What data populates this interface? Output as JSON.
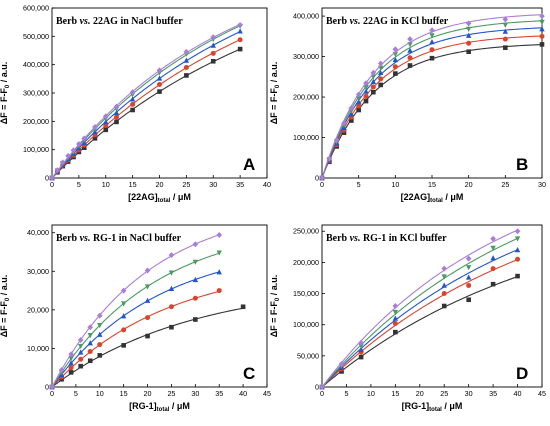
{
  "chart_data": [
    {
      "type": "scatter",
      "panel": "A",
      "title": {
        "prefix": "Berb ",
        "vs": "vs.",
        "rest": " 22AG in NaCl buffer"
      },
      "xlabel": {
        "main": "[22AG]",
        "sub": "total",
        "unit": " / μM"
      },
      "ylabel": {
        "part1": "ΔF = F-F",
        "sub": "0",
        "unit": " / a.u."
      },
      "xlim": [
        0,
        40
      ],
      "ylim": [
        0,
        600000
      ],
      "xticks": [
        "0",
        "5",
        "10",
        "15",
        "20",
        "25",
        "30",
        "35",
        "40"
      ],
      "yticks": [
        "0",
        "100,000",
        "200,000",
        "300,000",
        "400,000",
        "500,000",
        "600,000"
      ],
      "grid": false,
      "series": [
        {
          "color": "#333333",
          "marker": "square",
          "x": [
            0,
            1,
            2,
            3,
            4,
            5,
            6,
            8,
            10,
            12,
            15,
            20,
            25,
            30,
            35
          ],
          "y": [
            0,
            20000,
            42000,
            58000,
            74000,
            92000,
            107000,
            140000,
            170000,
            198000,
            240000,
            305000,
            362000,
            412000,
            455000
          ]
        },
        {
          "color": "#d9442e",
          "marker": "circle",
          "x": [
            0,
            1,
            2,
            3,
            4,
            5,
            6,
            8,
            10,
            12,
            15,
            20,
            25,
            30,
            35
          ],
          "y": [
            0,
            22000,
            45000,
            63000,
            80000,
            99000,
            116000,
            152000,
            185000,
            215000,
            260000,
            330000,
            390000,
            440000,
            488000
          ]
        },
        {
          "color": "#2255cc",
          "marker": "triangle-up",
          "x": [
            0,
            1,
            2,
            3,
            4,
            5,
            6,
            8,
            10,
            12,
            15,
            20,
            25,
            30,
            35
          ],
          "y": [
            0,
            24000,
            48000,
            68000,
            86000,
            106000,
            125000,
            163000,
            198000,
            230000,
            278000,
            352000,
            415000,
            468000,
            518000
          ]
        },
        {
          "color": "#4c9a62",
          "marker": "triangle-down",
          "x": [
            0,
            1,
            2,
            3,
            4,
            5,
            6,
            8,
            10,
            12,
            15,
            20,
            25,
            30,
            35
          ],
          "y": [
            0,
            26000,
            52000,
            73000,
            92000,
            113000,
            133000,
            173000,
            210000,
            244000,
            295000,
            372000,
            438000,
            490000,
            536000
          ]
        },
        {
          "color": "#a97ed8",
          "marker": "diamond",
          "x": [
            0,
            1,
            2,
            3,
            4,
            5,
            6,
            8,
            10,
            12,
            15,
            20,
            25,
            30,
            35
          ],
          "y": [
            0,
            28000,
            55000,
            78000,
            98000,
            120000,
            140000,
            180000,
            218000,
            252000,
            303000,
            380000,
            445000,
            497000,
            540000
          ]
        }
      ]
    },
    {
      "type": "scatter",
      "panel": "B",
      "title": {
        "prefix": "Berb ",
        "vs": "vs.",
        "rest": " 22AG in KCl buffer"
      },
      "xlabel": {
        "main": "[22AG]",
        "sub": "total",
        "unit": " / μM"
      },
      "ylabel": {
        "part1": "ΔF = F-F",
        "sub": "0",
        "unit": " / a.u."
      },
      "xlim": [
        0,
        30
      ],
      "ylim": [
        0,
        420000
      ],
      "xticks": [
        "0",
        "5",
        "10",
        "15",
        "20",
        "25",
        "30"
      ],
      "yticks": [
        "0",
        "100,000",
        "200,000",
        "300,000",
        "400,000"
      ],
      "grid": false,
      "series": [
        {
          "color": "#333333",
          "marker": "square",
          "x": [
            0,
            1,
            2,
            3,
            4,
            5,
            6,
            7,
            8,
            10,
            12,
            15,
            20,
            25,
            30
          ],
          "y": [
            0,
            40000,
            78000,
            112000,
            142000,
            168000,
            190000,
            212000,
            230000,
            258000,
            278000,
            296000,
            312000,
            322000,
            330000
          ]
        },
        {
          "color": "#d9442e",
          "marker": "circle",
          "x": [
            0,
            1,
            2,
            3,
            4,
            5,
            6,
            7,
            8,
            10,
            12,
            15,
            20,
            25,
            30
          ],
          "y": [
            0,
            42000,
            82000,
            118000,
            150000,
            178000,
            202000,
            225000,
            245000,
            275000,
            297000,
            317000,
            333000,
            343000,
            350000
          ]
        },
        {
          "color": "#2255cc",
          "marker": "triangle-up",
          "x": [
            0,
            1,
            2,
            3,
            4,
            5,
            6,
            7,
            8,
            10,
            12,
            15,
            20,
            25,
            30
          ],
          "y": [
            0,
            44000,
            86000,
            124000,
            158000,
            188000,
            214000,
            238000,
            260000,
            292000,
            315000,
            336000,
            352000,
            362000,
            368000
          ]
        },
        {
          "color": "#4c9a62",
          "marker": "triangle-down",
          "x": [
            0,
            1,
            2,
            3,
            4,
            5,
            6,
            7,
            8,
            10,
            12,
            15,
            20,
            25,
            30
          ],
          "y": [
            0,
            46000,
            90000,
            130000,
            166000,
            197000,
            224000,
            250000,
            272000,
            306000,
            330000,
            352000,
            368000,
            378000,
            385000
          ]
        },
        {
          "color": "#a97ed8",
          "marker": "diamond",
          "x": [
            0,
            1,
            2,
            3,
            4,
            5,
            6,
            7,
            8,
            10,
            12,
            15,
            20,
            25,
            30
          ],
          "y": [
            0,
            48000,
            94000,
            136000,
            173000,
            206000,
            234000,
            260000,
            283000,
            318000,
            343000,
            365000,
            382000,
            392000,
            400000
          ]
        }
      ]
    },
    {
      "type": "scatter",
      "panel": "C",
      "title": {
        "prefix": "Berb ",
        "vs": "vs.",
        "rest": " RG-1 in NaCl buffer"
      },
      "xlabel": {
        "main": "[RG-1]",
        "sub": "total",
        "unit": " / μM"
      },
      "ylabel": {
        "part1": "ΔF = F-F",
        "sub": "0",
        "unit": " / a.u."
      },
      "xlim": [
        0,
        45
      ],
      "ylim": [
        0,
        42000
      ],
      "xticks": [
        "0",
        "5",
        "10",
        "15",
        "20",
        "25",
        "30",
        "35",
        "40",
        "45"
      ],
      "yticks": [
        "0",
        "10,000",
        "20,000",
        "30,000",
        "40,000"
      ],
      "grid": false,
      "series": [
        {
          "color": "#333333",
          "marker": "square",
          "x": [
            0,
            2,
            4,
            6,
            8,
            10,
            15,
            20,
            25,
            30,
            40
          ],
          "y": [
            0,
            2000,
            3800,
            5400,
            6800,
            8200,
            10800,
            13200,
            15500,
            17500,
            20800
          ]
        },
        {
          "color": "#d9442e",
          "marker": "circle",
          "x": [
            0,
            2,
            4,
            6,
            8,
            10,
            15,
            20,
            25,
            30,
            35
          ],
          "y": [
            0,
            2600,
            5000,
            7200,
            9200,
            11000,
            14800,
            18000,
            20800,
            23000,
            25000
          ]
        },
        {
          "color": "#2255cc",
          "marker": "triangle-up",
          "x": [
            0,
            2,
            4,
            6,
            8,
            10,
            15,
            20,
            25,
            30,
            35
          ],
          "y": [
            0,
            3200,
            6200,
            9000,
            11400,
            13600,
            18400,
            22400,
            25500,
            27800,
            29800
          ]
        },
        {
          "color": "#4c9a62",
          "marker": "triangle-down",
          "x": [
            0,
            2,
            4,
            6,
            8,
            10,
            15,
            20,
            25,
            30,
            35
          ],
          "y": [
            0,
            3800,
            7400,
            10600,
            13400,
            16000,
            21600,
            26000,
            29600,
            32400,
            34800
          ]
        },
        {
          "color": "#a97ed8",
          "marker": "diamond",
          "x": [
            0,
            2,
            4,
            6,
            8,
            10,
            15,
            20,
            25,
            30,
            35
          ],
          "y": [
            0,
            4400,
            8500,
            12200,
            15500,
            18500,
            25000,
            30200,
            34200,
            37000,
            39400
          ]
        }
      ]
    },
    {
      "type": "scatter",
      "panel": "D",
      "title": {
        "prefix": "Berb ",
        "vs": "vs.",
        "rest": " RG-1 in KCl buffer"
      },
      "xlabel": {
        "main": "[RG-1]",
        "sub": "total",
        "unit": " / μM"
      },
      "ylabel": {
        "part1": "ΔF = F-F",
        "sub": "0",
        "unit": " / a.u."
      },
      "xlim": [
        0,
        45
      ],
      "ylim": [
        0,
        260000
      ],
      "xticks": [
        "0",
        "5",
        "10",
        "15",
        "20",
        "25",
        "30",
        "35",
        "40",
        "45"
      ],
      "yticks": [
        "0",
        "50,000",
        "100,000",
        "150,000",
        "200,000",
        "250,000"
      ],
      "grid": false,
      "series": [
        {
          "color": "#333333",
          "marker": "square",
          "x": [
            0,
            4,
            8,
            15,
            25,
            30,
            35,
            40
          ],
          "y": [
            0,
            25000,
            48000,
            88000,
            130000,
            140000,
            165000,
            178000
          ]
        },
        {
          "color": "#d9442e",
          "marker": "circle",
          "x": [
            0,
            4,
            8,
            15,
            25,
            30,
            35,
            40
          ],
          "y": [
            0,
            29000,
            56000,
            102000,
            150000,
            163000,
            190000,
            205000
          ]
        },
        {
          "color": "#2255cc",
          "marker": "triangle-up",
          "x": [
            0,
            4,
            8,
            15,
            25,
            30,
            35,
            40
          ],
          "y": [
            0,
            31000,
            60000,
            110000,
            163000,
            176000,
            207000,
            220000
          ]
        },
        {
          "color": "#4c9a62",
          "marker": "triangle-down",
          "x": [
            0,
            4,
            8,
            15,
            25,
            30,
            35,
            40
          ],
          "y": [
            0,
            34000,
            66000,
            120000,
            177000,
            192000,
            223000,
            238000
          ]
        },
        {
          "color": "#a97ed8",
          "marker": "diamond",
          "x": [
            0,
            4,
            8,
            15,
            25,
            30,
            35,
            40
          ],
          "y": [
            0,
            37000,
            71000,
            130000,
            190000,
            206000,
            238000,
            250000
          ]
        }
      ]
    }
  ]
}
